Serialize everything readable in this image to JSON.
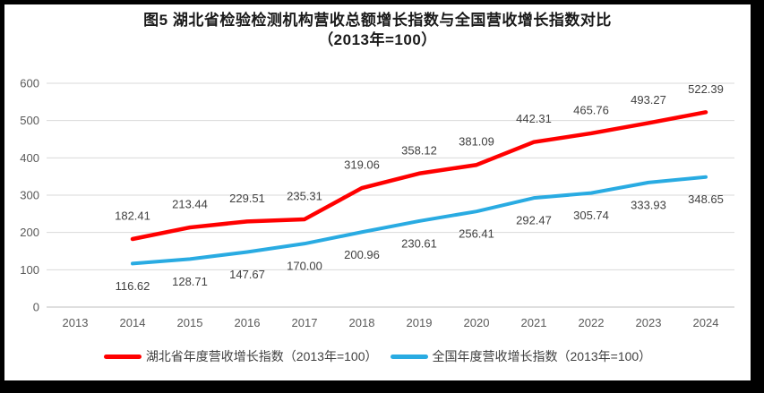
{
  "title": {
    "line1": "图5 湖北省检验检测机构营收总额增长指数与全国营收增长指数对比",
    "line2": "（2013年=100）"
  },
  "chart_data": {
    "type": "line",
    "categories": [
      "2013",
      "2014",
      "2015",
      "2016",
      "2017",
      "2018",
      "2019",
      "2020",
      "2021",
      "2022",
      "2023",
      "2024"
    ],
    "series": [
      {
        "name": "湖北省年度营收增长指数（2013年=100）",
        "color": "#FF0000",
        "label_position": "above",
        "values": [
          null,
          182.41,
          213.44,
          229.51,
          235.31,
          319.06,
          358.12,
          381.09,
          442.31,
          465.76,
          493.27,
          522.39
        ]
      },
      {
        "name": "全国年度营收增长指数（2013年=100）",
        "color": "#29ABE2",
        "label_position": "below",
        "values": [
          null,
          116.62,
          128.71,
          147.67,
          170.0,
          200.96,
          230.61,
          256.41,
          292.47,
          305.74,
          333.93,
          348.65
        ]
      }
    ],
    "xlabel": "",
    "ylabel": "",
    "ylim": [
      0,
      600
    ],
    "y_ticks": [
      0,
      100,
      200,
      300,
      400,
      500,
      600
    ],
    "grid": true,
    "legend_position": "bottom",
    "data_labels_decimals": 2
  },
  "style_colors": {
    "gridline": "#D9D9D9",
    "axis_line": "#BFBFBF",
    "tick_label": "#595959",
    "data_label": "#404040"
  }
}
